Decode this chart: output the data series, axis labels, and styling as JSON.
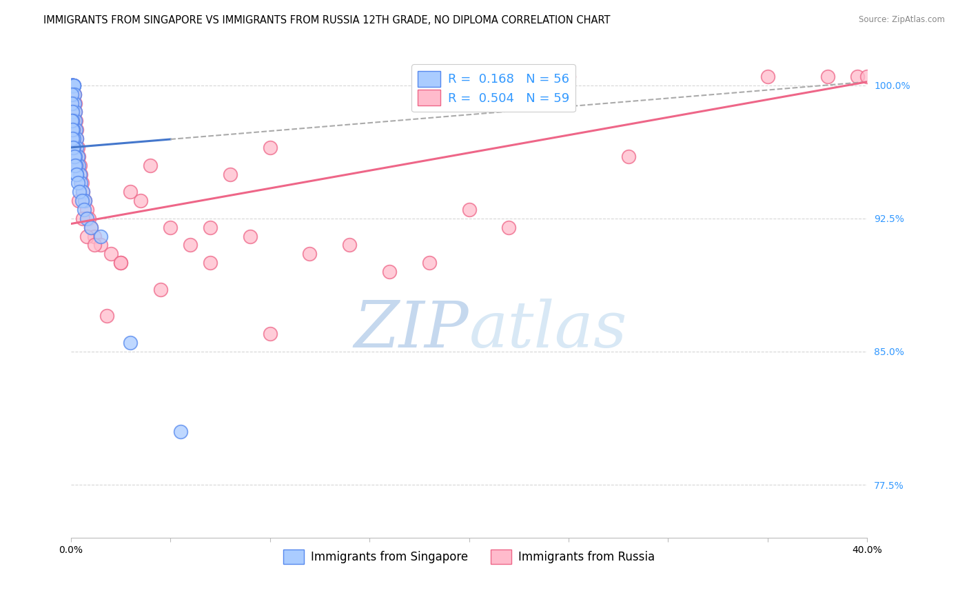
{
  "title": "IMMIGRANTS FROM SINGAPORE VS IMMIGRANTS FROM RUSSIA 12TH GRADE, NO DIPLOMA CORRELATION CHART",
  "source": "Source: ZipAtlas.com",
  "xmin": 0.0,
  "xmax": 40.0,
  "ymin": 74.5,
  "ymax": 101.8,
  "yticks": [
    77.5,
    85.0,
    92.5,
    100.0
  ],
  "ytick_labels": [
    "77.5%",
    "85.0%",
    "92.5%",
    "100.0%"
  ],
  "xtick_left_label": "0.0%",
  "xtick_right_label": "40.0%",
  "legend_r1": "R =  0.168",
  "legend_n1": "N = 56",
  "legend_r2": "R =  0.504",
  "legend_n2": "N = 59",
  "color_sg_edge": "#5588EE",
  "color_sg_face": "#AACCFF",
  "color_ru_edge": "#EE6688",
  "color_ru_face": "#FFBBCC",
  "color_sg_line": "#4477CC",
  "color_ru_line": "#EE6688",
  "color_grid": "#CCCCCC",
  "watermark_color": "#D5E5F5",
  "sg_x": [
    0.02,
    0.03,
    0.04,
    0.04,
    0.05,
    0.06,
    0.06,
    0.07,
    0.08,
    0.09,
    0.1,
    0.1,
    0.11,
    0.12,
    0.13,
    0.15,
    0.16,
    0.17,
    0.18,
    0.2,
    0.22,
    0.25,
    0.28,
    0.3,
    0.35,
    0.4,
    0.45,
    0.5,
    0.6,
    0.7,
    0.03,
    0.05,
    0.07,
    0.09,
    0.11,
    0.13,
    0.15,
    0.2,
    0.25,
    0.3,
    0.04,
    0.06,
    0.08,
    0.12,
    0.18,
    0.22,
    0.28,
    0.35,
    0.42,
    0.55,
    0.65,
    0.8,
    1.0,
    1.5,
    3.0,
    5.5
  ],
  "sg_y": [
    100.0,
    100.0,
    100.0,
    100.0,
    100.0,
    100.0,
    100.0,
    100.0,
    100.0,
    100.0,
    100.0,
    100.0,
    100.0,
    100.0,
    100.0,
    100.0,
    100.0,
    99.5,
    99.0,
    98.5,
    98.0,
    97.5,
    97.0,
    96.5,
    96.0,
    95.5,
    95.0,
    94.5,
    94.0,
    93.5,
    99.5,
    99.0,
    98.5,
    98.0,
    97.5,
    97.0,
    96.5,
    96.0,
    95.5,
    95.0,
    98.0,
    97.5,
    97.0,
    96.5,
    96.0,
    95.5,
    95.0,
    94.5,
    94.0,
    93.5,
    93.0,
    92.5,
    92.0,
    91.5,
    85.5,
    80.5
  ],
  "ru_x": [
    0.05,
    0.08,
    0.1,
    0.12,
    0.15,
    0.18,
    0.2,
    0.22,
    0.25,
    0.28,
    0.3,
    0.35,
    0.4,
    0.45,
    0.5,
    0.55,
    0.6,
    0.7,
    0.8,
    0.9,
    1.0,
    1.2,
    1.5,
    2.0,
    2.5,
    3.0,
    3.5,
    4.0,
    5.0,
    6.0,
    7.0,
    8.0,
    9.0,
    10.0,
    12.0,
    14.0,
    16.0,
    18.0,
    20.0,
    22.0,
    0.1,
    0.15,
    0.2,
    0.3,
    0.4,
    0.6,
    0.8,
    1.2,
    1.8,
    2.5,
    4.5,
    7.0,
    10.0,
    25.0,
    38.0,
    39.5,
    40.0,
    28.0,
    35.0
  ],
  "ru_y": [
    100.0,
    100.0,
    100.0,
    100.0,
    100.0,
    99.5,
    99.0,
    98.5,
    98.0,
    97.5,
    97.0,
    96.5,
    96.0,
    95.5,
    95.0,
    94.5,
    94.0,
    93.5,
    93.0,
    92.5,
    92.0,
    91.5,
    91.0,
    90.5,
    90.0,
    94.0,
    93.5,
    95.5,
    92.0,
    91.0,
    90.0,
    95.0,
    91.5,
    96.5,
    90.5,
    91.0,
    89.5,
    90.0,
    93.0,
    92.0,
    98.0,
    97.5,
    96.0,
    95.5,
    93.5,
    92.5,
    91.5,
    91.0,
    87.0,
    90.0,
    88.5,
    92.0,
    86.0,
    100.5,
    100.5,
    100.5,
    100.5,
    96.0,
    100.5
  ],
  "sg_line_x0": 0.0,
  "sg_line_x1": 40.0,
  "sg_line_y0": 96.5,
  "sg_line_y1": 100.2,
  "sg_line_solid_x1": 5.0,
  "ru_line_x0": 0.0,
  "ru_line_x1": 40.0,
  "ru_line_y0": 92.2,
  "ru_line_y1": 100.2,
  "title_fontsize": 10.5,
  "source_fontsize": 8.5,
  "legend_fontsize": 13,
  "axis_fontsize": 10,
  "tick_fontsize": 10
}
